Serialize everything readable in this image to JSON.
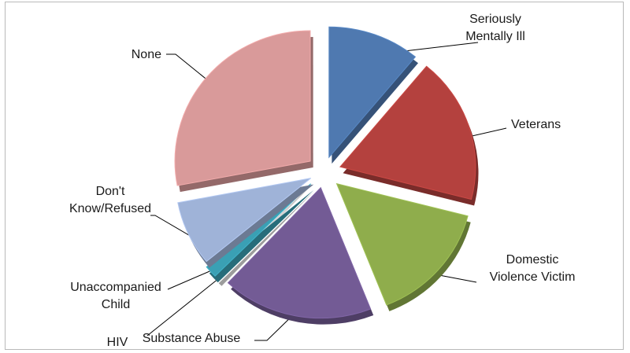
{
  "chart_data": {
    "type": "pie",
    "style": "3d-exploded",
    "title": "",
    "slices": [
      {
        "label": "Seriously Mentally Ill",
        "label_lines": [
          "Seriously",
          "Mentally Ill"
        ],
        "value": 11,
        "color": "#4f79b0"
      },
      {
        "label": "Veterans",
        "label_lines": [
          "Veterans"
        ],
        "value": 18,
        "color": "#b4413e"
      },
      {
        "label": "Domestic Violence Victim",
        "label_lines": [
          "Domestic",
          "Violence Victim"
        ],
        "value": 15,
        "color": "#8fad4c"
      },
      {
        "label": "Substance Abuse",
        "label_lines": [
          "Substance Abuse"
        ],
        "value": 18,
        "color": "#735b95"
      },
      {
        "label": "HIV",
        "label_lines": [
          "HIV"
        ],
        "value": 0.5,
        "color": "#e6e6e6"
      },
      {
        "label": "Unaccompanied Child",
        "label_lines": [
          "Unaccompanied",
          "Child"
        ],
        "value": 1.5,
        "color": "#3aa0b4"
      },
      {
        "label": "Don't Know/Refused",
        "label_lines": [
          "Don't",
          "Know/Refused"
        ],
        "value": 8,
        "color": "#9fb3d8"
      },
      {
        "label": "None",
        "label_lines": [
          "None"
        ],
        "value": 28,
        "color": "#d99a9a"
      }
    ]
  }
}
